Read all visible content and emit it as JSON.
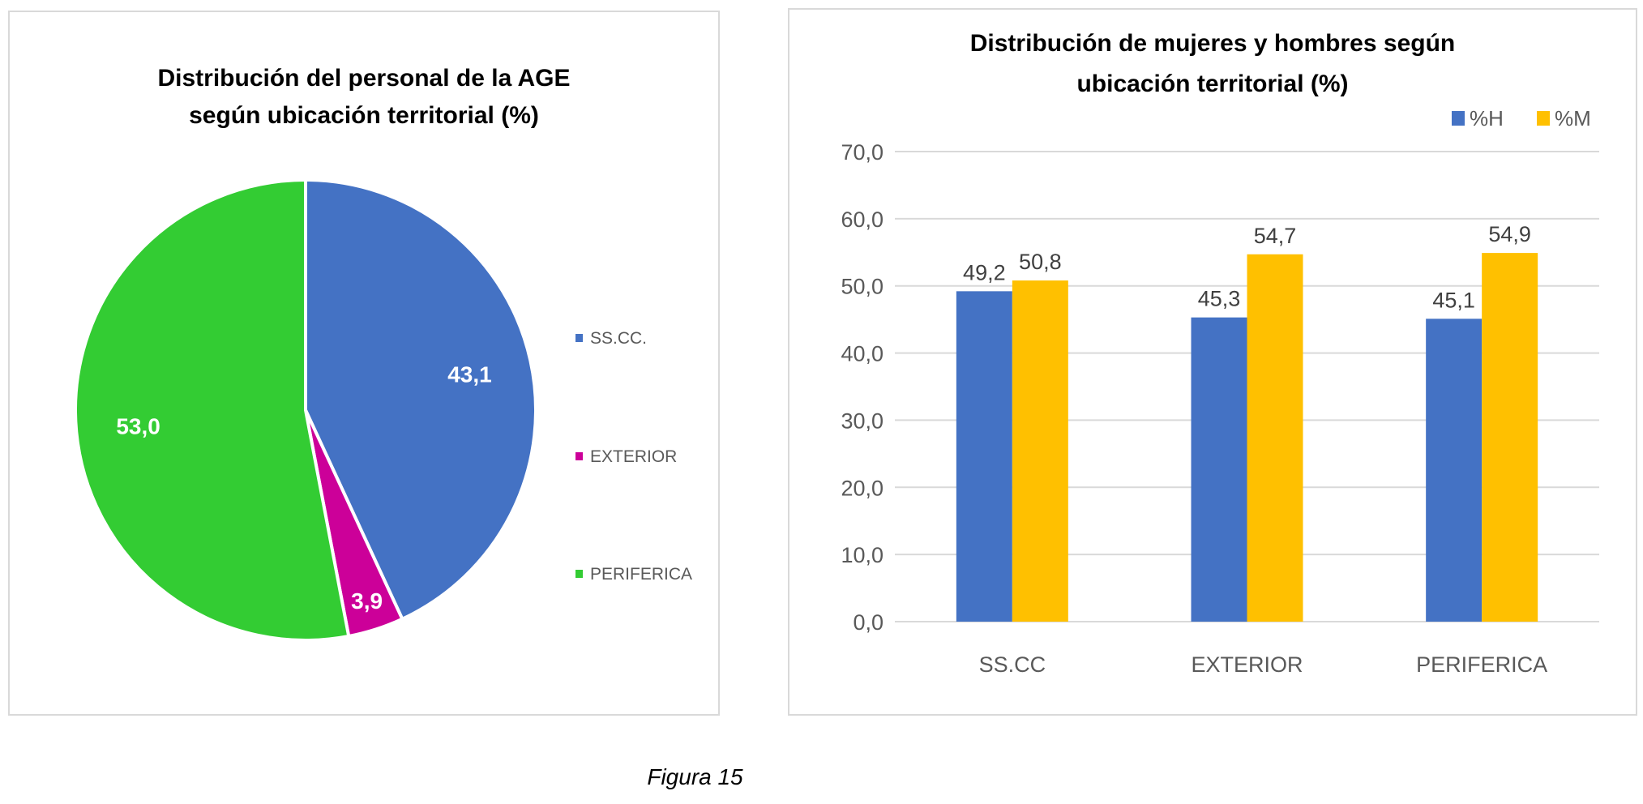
{
  "caption": "Figura 15",
  "chart_data": [
    {
      "type": "pie",
      "title_lines": [
        "Distribución del personal de la AGE",
        "según ubicación territorial (%)"
      ],
      "categories": [
        "SS.CC.",
        "EXTERIOR",
        "PERIFERICA"
      ],
      "values": [
        43.1,
        3.9,
        53.0
      ],
      "labels": [
        "43,1",
        "3,9",
        "53,0"
      ],
      "colors": [
        "#4472c4",
        "#cc0099",
        "#33cc33"
      ],
      "legend_position": "right"
    },
    {
      "type": "bar",
      "title_lines": [
        "Distribución de mujeres y hombres según",
        "ubicación territorial (%)"
      ],
      "categories": [
        "SS.CC",
        "EXTERIOR",
        "PERIFERICA"
      ],
      "series": [
        {
          "name": "%H",
          "values": [
            49.2,
            45.3,
            45.1
          ],
          "labels": [
            "49,2",
            "45,3",
            "45,1"
          ],
          "color": "#4472c4"
        },
        {
          "name": "%M",
          "values": [
            50.8,
            54.7,
            54.9
          ],
          "labels": [
            "50,8",
            "54,7",
            "54,9"
          ],
          "color": "#ffc000"
        }
      ],
      "ylim": [
        0,
        70
      ],
      "yticks": [
        "0,0",
        "10,0",
        "20,0",
        "30,0",
        "40,0",
        "50,0",
        "60,0",
        "70,0"
      ],
      "grid": true,
      "legend_position": "top-right"
    }
  ]
}
